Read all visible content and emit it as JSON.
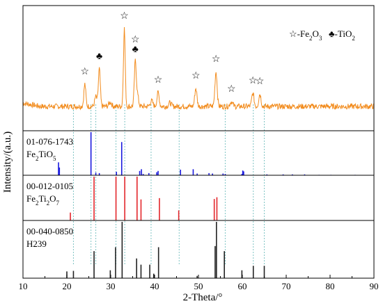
{
  "chart_data": {
    "type": "xrd-stacked",
    "xlabel": "2-Theta/°",
    "ylabel": "Intensity/(a.u.)",
    "xlim": [
      10,
      90
    ],
    "xticks": [
      10,
      20,
      30,
      40,
      50,
      60,
      70,
      80,
      90
    ],
    "legend": {
      "position": "top-right",
      "entries": [
        {
          "symbol": "☆",
          "label": "-Fe",
          "sub": "2",
          "label2": "O",
          "sub2": "3"
        },
        {
          "symbol": "♣",
          "label": "-TiO",
          "sub": "2",
          "label2": "",
          "sub2": ""
        }
      ]
    },
    "top_pattern": {
      "color": "#f28c1e",
      "baseline": 15,
      "noise": 4,
      "peaks": [
        {
          "x": 24.1,
          "height": 32,
          "width": 0.22
        },
        {
          "x": 26.6,
          "height": 14,
          "width": 0.25
        },
        {
          "x": 27.4,
          "height": 54,
          "width": 0.22
        },
        {
          "x": 29.9,
          "height": 6,
          "width": 0.3
        },
        {
          "x": 33.1,
          "height": 112,
          "width": 0.2
        },
        {
          "x": 35.6,
          "height": 64,
          "width": 0.22
        },
        {
          "x": 36.1,
          "height": 16,
          "width": 0.25
        },
        {
          "x": 39.3,
          "height": 8,
          "width": 0.3
        },
        {
          "x": 40.8,
          "height": 20,
          "width": 0.25
        },
        {
          "x": 43.5,
          "height": 5,
          "width": 0.3
        },
        {
          "x": 49.4,
          "height": 26,
          "width": 0.25
        },
        {
          "x": 54.0,
          "height": 50,
          "width": 0.25
        },
        {
          "x": 57.5,
          "height": 7,
          "width": 0.3
        },
        {
          "x": 62.4,
          "height": 19,
          "width": 0.25
        },
        {
          "x": 64.0,
          "height": 18,
          "width": 0.25
        }
      ],
      "markers": [
        {
          "x": 24.1,
          "symbol": "☆"
        },
        {
          "x": 27.4,
          "symbol": "♣"
        },
        {
          "x": 33.1,
          "symbol": "☆"
        },
        {
          "x": 35.6,
          "symbol": "♣"
        },
        {
          "x": 35.6,
          "symbol": "☆"
        },
        {
          "x": 40.8,
          "symbol": "☆"
        },
        {
          "x": 49.4,
          "symbol": "☆"
        },
        {
          "x": 54.0,
          "symbol": "☆"
        },
        {
          "x": 57.5,
          "symbol": "☆"
        },
        {
          "x": 62.4,
          "symbol": "☆"
        },
        {
          "x": 64.0,
          "symbol": "☆"
        }
      ]
    },
    "reference_patterns": [
      {
        "id": "01-076-1743",
        "formula": [
          [
            "Fe",
            ""
          ],
          [
            "2",
            "sub"
          ],
          [
            "TiO",
            ""
          ],
          [
            "5",
            "sub"
          ]
        ],
        "color": "#1a1adf",
        "sticks": [
          {
            "x": 18.1,
            "i": 30
          },
          {
            "x": 18.3,
            "i": 18
          },
          {
            "x": 25.5,
            "i": 100
          },
          {
            "x": 26.6,
            "i": 6
          },
          {
            "x": 27.4,
            "i": 5
          },
          {
            "x": 31.3,
            "i": 8
          },
          {
            "x": 32.5,
            "i": 77
          },
          {
            "x": 36.6,
            "i": 10
          },
          {
            "x": 37.0,
            "i": 14
          },
          {
            "x": 37.4,
            "i": 3
          },
          {
            "x": 38.7,
            "i": 5
          },
          {
            "x": 40.5,
            "i": 7
          },
          {
            "x": 40.8,
            "i": 10
          },
          {
            "x": 45.9,
            "i": 13
          },
          {
            "x": 48.8,
            "i": 14
          },
          {
            "x": 49.7,
            "i": 4
          },
          {
            "x": 52.4,
            "i": 5
          },
          {
            "x": 53.2,
            "i": 4
          },
          {
            "x": 55.6,
            "i": 4
          },
          {
            "x": 56.1,
            "i": 3
          },
          {
            "x": 59.9,
            "i": 3
          },
          {
            "x": 60.1,
            "i": 11
          },
          {
            "x": 60.3,
            "i": 9
          },
          {
            "x": 65.6,
            "i": 2
          },
          {
            "x": 69.3,
            "i": 2
          },
          {
            "x": 71.4,
            "i": 2
          },
          {
            "x": 74.2,
            "i": 2
          },
          {
            "x": 77.5,
            "i": 1
          },
          {
            "x": 80.2,
            "i": 1
          },
          {
            "x": 85.7,
            "i": 1
          }
        ]
      },
      {
        "id": "00-012-0105",
        "formula": [
          [
            "Fe",
            ""
          ],
          [
            "2",
            "sub"
          ],
          [
            "Ti",
            ""
          ],
          [
            "2",
            "sub"
          ],
          [
            "O",
            ""
          ],
          [
            "7",
            "sub"
          ]
        ],
        "color": "#e3262b",
        "sticks": [
          {
            "x": 20.8,
            "i": 18
          },
          {
            "x": 26.2,
            "i": 100
          },
          {
            "x": 31.2,
            "i": 100
          },
          {
            "x": 33.2,
            "i": 100
          },
          {
            "x": 36.0,
            "i": 100
          },
          {
            "x": 36.9,
            "i": 48
          },
          {
            "x": 41.1,
            "i": 51
          },
          {
            "x": 45.5,
            "i": 23
          },
          {
            "x": 53.6,
            "i": 49
          },
          {
            "x": 54.2,
            "i": 53
          }
        ]
      },
      {
        "id": "00-040-0850",
        "formula": [
          [
            "H239",
            ""
          ]
        ],
        "color": "#222222",
        "sticks": [
          {
            "x": 20.0,
            "i": 12
          },
          {
            "x": 21.5,
            "i": 13
          },
          {
            "x": 26.2,
            "i": 48
          },
          {
            "x": 29.9,
            "i": 14
          },
          {
            "x": 31.1,
            "i": 55
          },
          {
            "x": 32.6,
            "i": 100
          },
          {
            "x": 35.9,
            "i": 35
          },
          {
            "x": 36.9,
            "i": 24
          },
          {
            "x": 38.9,
            "i": 24
          },
          {
            "x": 39.8,
            "i": 8
          },
          {
            "x": 40.9,
            "i": 55
          },
          {
            "x": 49.7,
            "i": 4
          },
          {
            "x": 53.8,
            "i": 57
          },
          {
            "x": 54.1,
            "i": 100
          },
          {
            "x": 55.9,
            "i": 48
          },
          {
            "x": 59.9,
            "i": 14
          },
          {
            "x": 62.5,
            "i": 22
          },
          {
            "x": 65.0,
            "i": 22
          }
        ]
      }
    ],
    "guide_lines": {
      "color": "#7fc4c4",
      "x": [
        21.5,
        25.5,
        26.6,
        31.2,
        33.2,
        39.2,
        45.6,
        56.1,
        62.5,
        65.0
      ]
    }
  }
}
